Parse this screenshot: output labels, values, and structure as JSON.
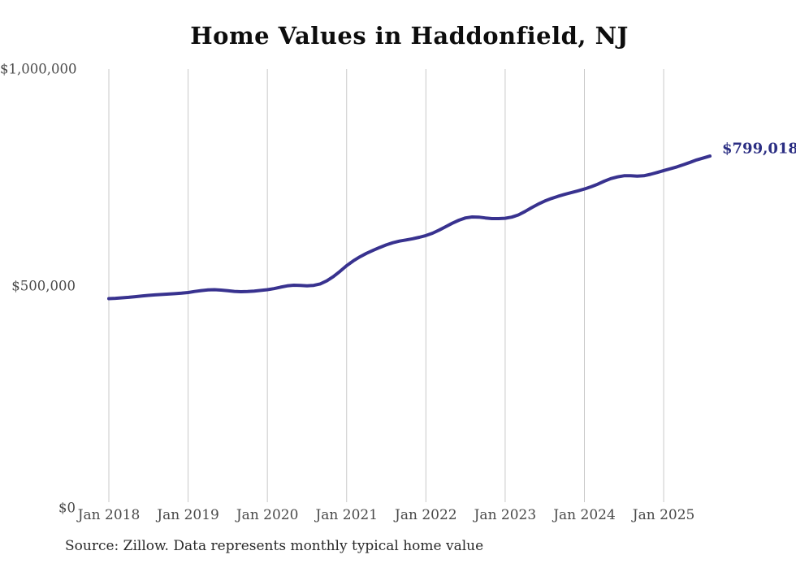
{
  "page": {
    "background_color": "#ffffff"
  },
  "chart": {
    "title": "Home Values in Haddonfield, NJ",
    "source_note": "Source: Zillow. Data represents monthly typical home value",
    "end_label": "$799,018",
    "line_color": "#38328f",
    "annotation_color": "#2b2e83",
    "gridline_color": "#c9c9c9",
    "tick_label_color": "#4a4a4a"
  },
  "chart_data": {
    "type": "line",
    "title": "Home Values in Haddonfield, NJ",
    "xlabel": "",
    "ylabel": "",
    "ylim": [
      0,
      1000000
    ],
    "grid": "vertical-only",
    "legend": false,
    "annotation": {
      "text": "$799,018",
      "at": "2025-08"
    },
    "y_ticks": [
      {
        "label": "$0",
        "value": 0
      },
      {
        "label": "$500,000",
        "value": 500000
      },
      {
        "label": "$1,000,000",
        "value": 1000000
      }
    ],
    "x_ticks": [
      {
        "label": "Jan 2018",
        "month": "2018-01"
      },
      {
        "label": "Jan 2019",
        "month": "2019-01"
      },
      {
        "label": "Jan 2020",
        "month": "2020-01"
      },
      {
        "label": "Jan 2021",
        "month": "2021-01"
      },
      {
        "label": "Jan 2022",
        "month": "2022-01"
      },
      {
        "label": "Jan 2023",
        "month": "2023-01"
      },
      {
        "label": "Jan 2024",
        "month": "2024-01"
      },
      {
        "label": "Jan 2025",
        "month": "2025-01"
      }
    ],
    "x": [
      "2018-01",
      "2018-02",
      "2018-03",
      "2018-04",
      "2018-05",
      "2018-06",
      "2018-07",
      "2018-08",
      "2018-09",
      "2018-10",
      "2018-11",
      "2018-12",
      "2019-01",
      "2019-02",
      "2019-03",
      "2019-04",
      "2019-05",
      "2019-06",
      "2019-07",
      "2019-08",
      "2019-09",
      "2019-10",
      "2019-11",
      "2019-12",
      "2020-01",
      "2020-02",
      "2020-03",
      "2020-04",
      "2020-05",
      "2020-06",
      "2020-07",
      "2020-08",
      "2020-09",
      "2020-10",
      "2020-11",
      "2020-12",
      "2021-01",
      "2021-02",
      "2021-03",
      "2021-04",
      "2021-05",
      "2021-06",
      "2021-07",
      "2021-08",
      "2021-09",
      "2021-10",
      "2021-11",
      "2021-12",
      "2022-01",
      "2022-02",
      "2022-03",
      "2022-04",
      "2022-05",
      "2022-06",
      "2022-07",
      "2022-08",
      "2022-09",
      "2022-10",
      "2022-11",
      "2022-12",
      "2023-01",
      "2023-02",
      "2023-03",
      "2023-04",
      "2023-05",
      "2023-06",
      "2023-07",
      "2023-08",
      "2023-09",
      "2023-10",
      "2023-11",
      "2023-12",
      "2024-01",
      "2024-02",
      "2024-03",
      "2024-04",
      "2024-05",
      "2024-06",
      "2024-07",
      "2024-08",
      "2024-09",
      "2024-10",
      "2024-11",
      "2024-12",
      "2025-01",
      "2025-02",
      "2025-03",
      "2025-04",
      "2025-05",
      "2025-06",
      "2025-07",
      "2025-08"
    ],
    "values": [
      470000,
      470800,
      471800,
      473000,
      474500,
      476000,
      477400,
      478600,
      479600,
      480500,
      481400,
      482600,
      484000,
      486500,
      488600,
      490100,
      490600,
      489600,
      488100,
      486700,
      486000,
      486400,
      487500,
      489000,
      490600,
      493100,
      496500,
      499400,
      501000,
      500600,
      499600,
      500600,
      504000,
      511000,
      521000,
      533000,
      546000,
      557000,
      566500,
      574500,
      581500,
      588000,
      594000,
      599000,
      602800,
      605500,
      608300,
      611700,
      615600,
      621100,
      628200,
      636100,
      644000,
      651100,
      656200,
      658600,
      658100,
      656200,
      654700,
      654700,
      655600,
      658200,
      663200,
      671100,
      680000,
      688200,
      695300,
      701200,
      706200,
      710700,
      714700,
      718700,
      723000,
      728100,
      734200,
      741000,
      747100,
      751100,
      753600,
      753700,
      752800,
      753700,
      757000,
      761100,
      765600,
      769700,
      774200,
      779300,
      784700,
      790200,
      794800,
      799018
    ]
  }
}
